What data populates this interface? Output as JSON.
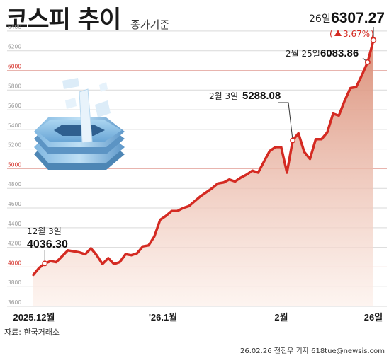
{
  "title": "코스피 추이",
  "subtitle": "종가기준",
  "source": "자료: 한국거래소",
  "credit": "26.02.26 전진우 기자 618tue@newsis.com",
  "colors": {
    "line": "#d42a22",
    "area_top": "#d98a72",
    "area_bottom": "#fdf0ea",
    "grid": "#d9d9d9",
    "red_grid": "#e8b4ae",
    "text": "#1a1a1a",
    "change": "#d42a22"
  },
  "chart_data": {
    "type": "area",
    "ylim": [
      3600,
      6500
    ],
    "yticks": [
      3600,
      3800,
      4000,
      4200,
      4400,
      4600,
      4800,
      5000,
      5200,
      5400,
      5600,
      5800,
      6000,
      6200,
      6400
    ],
    "red_gridlines": [
      4000,
      5000,
      6000
    ],
    "x_labels": [
      "2025.12월",
      "'26.1월",
      "2월",
      "26일"
    ],
    "values": [
      3920,
      3990,
      4036.3,
      4060,
      4050,
      4110,
      4170,
      4160,
      4150,
      4130,
      4190,
      4120,
      4030,
      4090,
      4030,
      4050,
      4130,
      4120,
      4140,
      4210,
      4220,
      4310,
      4480,
      4520,
      4570,
      4570,
      4600,
      4620,
      4670,
      4720,
      4760,
      4800,
      4850,
      4860,
      4890,
      4870,
      4910,
      4940,
      4980,
      4960,
      5070,
      5180,
      5220,
      5220,
      4960,
      5288.08,
      5360,
      5170,
      5100,
      5300,
      5300,
      5370,
      5560,
      5540,
      5690,
      5820,
      5830,
      5950,
      6083.86,
      6307.27
    ],
    "annotations": [
      {
        "date": "12월 3일",
        "value": "4036.30"
      },
      {
        "date": "2월 3일",
        "value": "5288.08"
      },
      {
        "date": "2월 25일",
        "value": "6083.86"
      },
      {
        "date": "26일",
        "value": "6307.27",
        "change": "3.67%"
      }
    ]
  }
}
